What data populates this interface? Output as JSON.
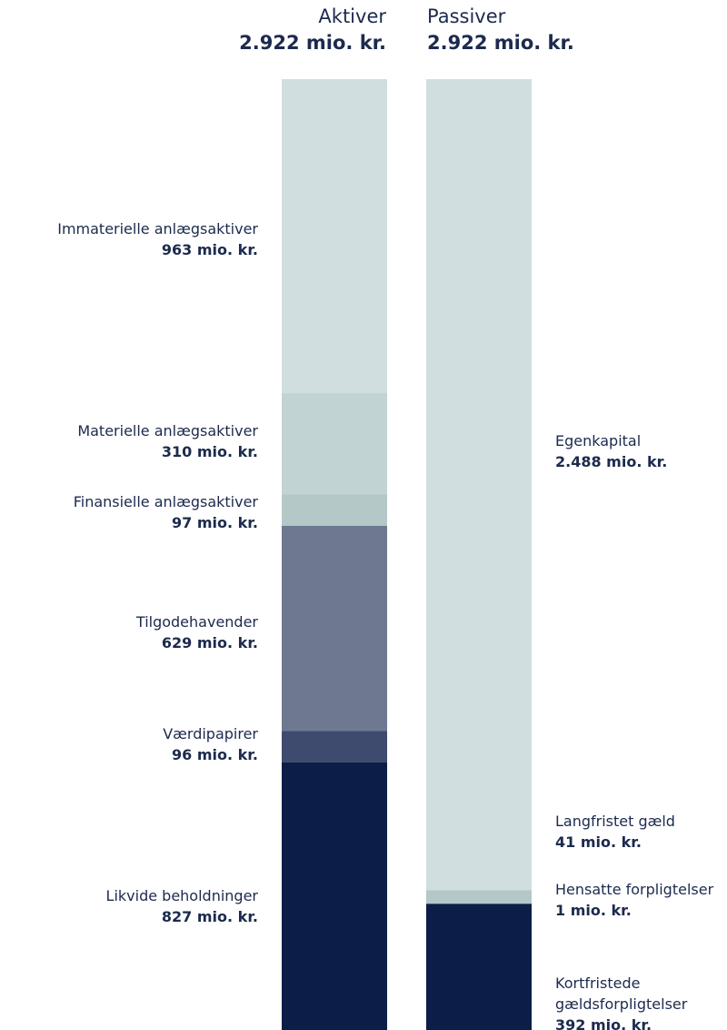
{
  "chart_data": {
    "type": "stacked_column",
    "columns": [
      {
        "title": "Aktiver",
        "total": 2922,
        "total_label": "2.922 mio. kr.",
        "segments": [
          {
            "name": "Immaterielle anlægsaktiver",
            "value": 963,
            "value_label": "963 mio. kr.",
            "color": "#d1dedf"
          },
          {
            "name": "Materielle anlægsaktiver",
            "value": 310,
            "value_label": "310 mio. kr.",
            "color": "#c1d3d3"
          },
          {
            "name": "Finansielle anlægsaktiver",
            "value": 97,
            "value_label": "97 mio. kr.",
            "color": "#b3c8c7"
          },
          {
            "name": "Tilgodehavender",
            "value": 629,
            "value_label": "629 mio. kr.",
            "color": "#6e7891"
          },
          {
            "name": "Værdipapirer",
            "value": 96,
            "value_label": "96 mio. kr.",
            "color": "#3e4a6e"
          },
          {
            "name": "Likvide beholdninger",
            "value": 827,
            "value_label": "827 mio. kr.",
            "color": "#0c1d48"
          }
        ]
      },
      {
        "title": "Passiver",
        "total": 2922,
        "total_label": "2.922 mio. kr.",
        "segments": [
          {
            "name": "Egenkapital",
            "value": 2488,
            "value_label": "2.488 mio. kr.",
            "color": "#d1dedf"
          },
          {
            "name": "Langfristet gæld",
            "value": 41,
            "value_label": "41 mio. kr.",
            "color": "#b3c8c7"
          },
          {
            "name": "Hensatte forpligtelser",
            "value": 1,
            "value_label": "1 mio. kr.",
            "color": "#3e4a6e"
          },
          {
            "name": "Kortfristede gældsforpligtelser",
            "value": 392,
            "value_label": "392 mio. kr.",
            "color": "#0c1d48"
          }
        ]
      }
    ]
  }
}
